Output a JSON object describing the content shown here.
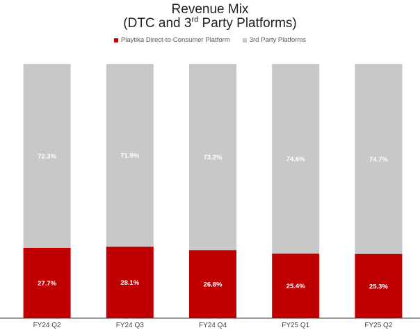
{
  "title": {
    "line1": "Revenue Mix",
    "line2_prefix": "(DTC and 3",
    "line2_sup": "rd",
    "line2_suffix": " Party Platforms)"
  },
  "colors": {
    "dtc": "#c00000",
    "third_party": "#c8c8c8",
    "label_text": "#ffffff",
    "axis": "#333333"
  },
  "chart_data": {
    "type": "bar",
    "stacked": true,
    "title": "Revenue Mix (DTC and 3rd Party Platforms)",
    "categories": [
      "FY24 Q2",
      "FY24 Q3",
      "FY24 Q4",
      "FY25 Q1",
      "FY25 Q2"
    ],
    "series": [
      {
        "name": "Playtika Direct-to-Consumer Platform",
        "values": [
          27.7,
          28.1,
          26.8,
          25.4,
          25.3
        ],
        "labels": [
          "27.7%",
          "28.1%",
          "26.8%",
          "25.4%",
          "25.3%"
        ]
      },
      {
        "name": "3rd Party Platforms",
        "values": [
          72.3,
          71.9,
          73.2,
          74.6,
          74.7
        ],
        "labels": [
          "72.3%",
          "71.9%",
          "73.2%",
          "74.6%",
          "74.7%"
        ]
      }
    ],
    "ylim": [
      0,
      100
    ],
    "grid": false,
    "legend_position": "top-center"
  }
}
